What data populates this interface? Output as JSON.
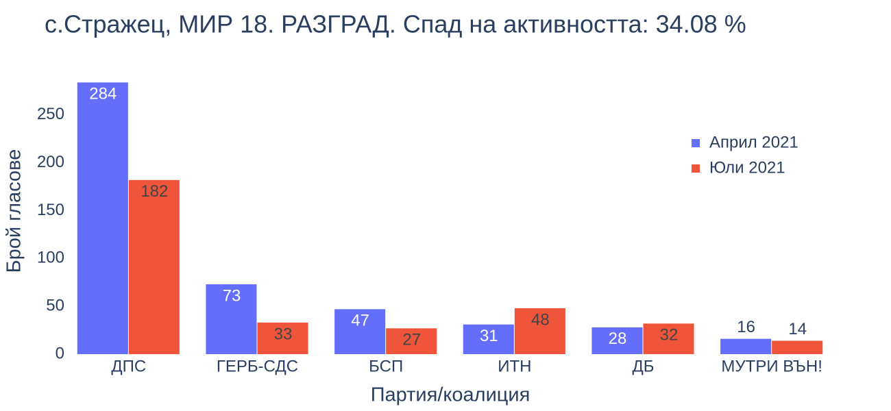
{
  "chart_data": {
    "type": "bar",
    "title": "с.Стражец, МИР 18. РАЗГРАД. Спад на активността: 34.08 %",
    "x_label": "Партия/коалиция",
    "y_label": "Брой гласове",
    "categories": [
      "ДПС",
      "ГЕРБ-СДС",
      "БСП",
      "ИТН",
      "ДБ",
      "МУТРИ ВЪН!"
    ],
    "series": [
      {
        "name": "Април 2021",
        "color": "#636efa",
        "values": [
          284,
          73,
          47,
          31,
          28,
          16
        ]
      },
      {
        "name": "Юли 2021",
        "color": "#ef553b",
        "values": [
          182,
          33,
          27,
          48,
          32,
          14
        ]
      }
    ],
    "ylim": [
      0,
      300
    ],
    "yticks": [
      0,
      50,
      100,
      150,
      200,
      250
    ]
  }
}
